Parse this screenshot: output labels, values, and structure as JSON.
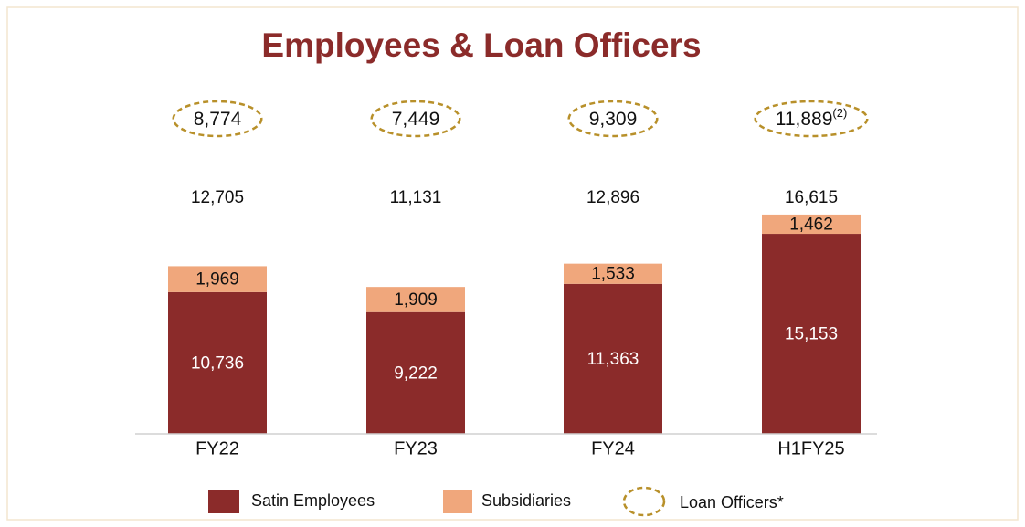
{
  "chart_data": {
    "type": "stacked-bar",
    "title": "Employees & Loan Officers",
    "categories": [
      "FY22",
      "FY23",
      "FY24",
      "H1FY25"
    ],
    "ylim": [
      0,
      20000
    ],
    "series": [
      {
        "name": "Satin Employees",
        "color": "#8b2b2a",
        "values": [
          10736,
          9222,
          11363,
          15153
        ],
        "value_labels": [
          "10,736",
          "9,222",
          "11,363",
          "15,153"
        ]
      },
      {
        "name": "Subsidiaries",
        "color": "#f0a77c",
        "values": [
          1969,
          1909,
          1533,
          1462
        ],
        "value_labels": [
          "1,969",
          "1,909",
          "1,533",
          "1,462"
        ]
      }
    ],
    "totals": [
      12705,
      11131,
      12896,
      16615
    ],
    "total_labels": [
      "12,705",
      "11,131",
      "12,896",
      "16,615"
    ],
    "loan_officers": {
      "name": "Loan Officers*",
      "color": "#b8902a",
      "values": [
        8774,
        7449,
        9309,
        11889
      ],
      "value_labels": [
        "8,774",
        "7,449",
        "9,309",
        "11,889"
      ],
      "value_notes": [
        null,
        null,
        null,
        "(2)"
      ]
    }
  }
}
